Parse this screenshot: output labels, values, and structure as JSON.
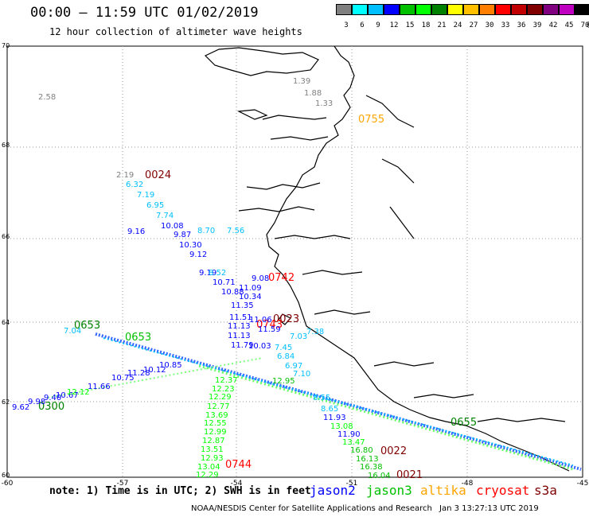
{
  "header": {
    "title": "00:00 – 11:59 UTC 01/02/2019",
    "subtitle": "12 hour collection of altimeter wave heights"
  },
  "colorbar": {
    "unit": "(ft)",
    "labels": [
      "3",
      "6",
      "9",
      "12",
      "15",
      "18",
      "21",
      "24",
      "27",
      "30",
      "33",
      "36",
      "39",
      "42",
      "45",
      "70"
    ],
    "colors": [
      "#808080",
      "#00ffff",
      "#00bfff",
      "#0000ff",
      "#00c000",
      "#00ff00",
      "#008000",
      "#ffff00",
      "#ffc000",
      "#ff8000",
      "#ff0000",
      "#c00000",
      "#800000",
      "#800080",
      "#c000c0",
      "#000000"
    ]
  },
  "axes": {
    "lat_labels": [
      "70",
      "68",
      "66",
      "64",
      "62",
      "60"
    ],
    "lon_labels": [
      "-60",
      "-57",
      "-54",
      "-51",
      "-48",
      "-45"
    ]
  },
  "times": [
    {
      "text": "0755",
      "color": "#ffa500"
    },
    {
      "text": "0024",
      "color": "#800000"
    },
    {
      "text": "0653",
      "color": "#008000"
    },
    {
      "text": "0653",
      "color": "#00c000"
    },
    {
      "text": "0742",
      "color": "#ff0000"
    },
    {
      "text": "0023",
      "color": "#800000"
    },
    {
      "text": "0743",
      "color": "#ff0000"
    },
    {
      "text": "0300",
      "color": "#008000"
    },
    {
      "text": "0744",
      "color": "#ff0000"
    },
    {
      "text": "0022",
      "color": "#800000"
    },
    {
      "text": "0021",
      "color": "#800000"
    },
    {
      "text": "0655",
      "color": "#008000"
    }
  ],
  "wave_heights": {
    "standalone": [
      {
        "text": "2.58",
        "color": "#808080"
      },
      {
        "text": "1.39",
        "color": "#808080"
      },
      {
        "text": "1.88",
        "color": "#808080"
      },
      {
        "text": "1.33",
        "color": "#808080"
      },
      {
        "text": "2.19",
        "color": "#808080"
      }
    ],
    "track_north": [
      {
        "text": "6.32",
        "color": "#00bfff"
      },
      {
        "text": "7.19",
        "color": "#00bfff"
      },
      {
        "text": "6.95",
        "color": "#00bfff"
      },
      {
        "text": "7.74",
        "color": "#00bfff"
      },
      {
        "text": "10.08",
        "color": "#0000ff"
      },
      {
        "text": "9.16",
        "color": "#0000ff"
      },
      {
        "text": "9.87",
        "color": "#0000ff"
      },
      {
        "text": "10.30",
        "color": "#0000ff"
      },
      {
        "text": "9.12",
        "color": "#0000ff"
      },
      {
        "text": "9.19",
        "color": "#0000ff"
      },
      {
        "text": "8.52",
        "color": "#00bfff"
      },
      {
        "text": "10.71",
        "color": "#0000ff"
      },
      {
        "text": "9.08",
        "color": "#0000ff"
      },
      {
        "text": "11.09",
        "color": "#0000ff"
      },
      {
        "text": "10.88",
        "color": "#0000ff"
      },
      {
        "text": "10.34",
        "color": "#0000ff"
      },
      {
        "text": "11.35",
        "color": "#0000ff"
      },
      {
        "text": "11.51",
        "color": "#0000ff"
      },
      {
        "text": "11.06",
        "color": "#0000ff"
      },
      {
        "text": "11.13",
        "color": "#0000ff"
      },
      {
        "text": "11.59",
        "color": "#0000ff"
      },
      {
        "text": "11.13",
        "color": "#0000ff"
      },
      {
        "text": "11.79",
        "color": "#0000ff"
      },
      {
        "text": "10.03",
        "color": "#0000ff"
      },
      {
        "text": "7.56",
        "color": "#00bfff"
      },
      {
        "text": "8.70",
        "color": "#00bfff"
      }
    ],
    "track_east": [
      {
        "text": "7.38",
        "color": "#00bfff"
      },
      {
        "text": "7.03",
        "color": "#00bfff"
      },
      {
        "text": "7.45",
        "color": "#00bfff"
      },
      {
        "text": "6.84",
        "color": "#00bfff"
      },
      {
        "text": "6.97",
        "color": "#00bfff"
      },
      {
        "text": "7.10",
        "color": "#00bfff"
      },
      {
        "text": "12.95",
        "color": "#00c000"
      },
      {
        "text": "8.55",
        "color": "#00bfff"
      },
      {
        "text": "8.65",
        "color": "#00bfff"
      },
      {
        "text": "11.93",
        "color": "#0000ff"
      },
      {
        "text": "13.08",
        "color": "#00ff00"
      },
      {
        "text": "11.90",
        "color": "#0000ff"
      },
      {
        "text": "13.47",
        "color": "#00ff00"
      },
      {
        "text": "16.80",
        "color": "#00c000"
      },
      {
        "text": "16.13",
        "color": "#00c000"
      },
      {
        "text": "16.38",
        "color": "#00c000"
      },
      {
        "text": "16.04",
        "color": "#00c000"
      }
    ],
    "track_west": [
      {
        "text": "7.04",
        "color": "#00bfff"
      },
      {
        "text": "10.85",
        "color": "#0000ff"
      },
      {
        "text": "10.12",
        "color": "#0000ff"
      },
      {
        "text": "11.28",
        "color": "#0000ff"
      },
      {
        "text": "10.75",
        "color": "#0000ff"
      },
      {
        "text": "11.66",
        "color": "#0000ff"
      },
      {
        "text": "10.67",
        "color": "#0000ff"
      },
      {
        "text": "9.40",
        "color": "#0000ff"
      },
      {
        "text": "9.98",
        "color": "#0000ff"
      },
      {
        "text": "9.62",
        "color": "#0000ff"
      },
      {
        "text": "12.12",
        "color": "#00ff00"
      }
    ],
    "track_south": [
      {
        "text": "12.37",
        "color": "#00ff00"
      },
      {
        "text": "12.23",
        "color": "#00ff00"
      },
      {
        "text": "12.29",
        "color": "#00ff00"
      },
      {
        "text": "12.77",
        "color": "#00ff00"
      },
      {
        "text": "13.69",
        "color": "#00ff00"
      },
      {
        "text": "12.55",
        "color": "#00ff00"
      },
      {
        "text": "12.99",
        "color": "#00ff00"
      },
      {
        "text": "12.87",
        "color": "#00ff00"
      },
      {
        "text": "13.51",
        "color": "#00ff00"
      },
      {
        "text": "12.93",
        "color": "#00ff00"
      },
      {
        "text": "13.04",
        "color": "#00ff00"
      },
      {
        "text": "12.29",
        "color": "#00ff00"
      }
    ]
  },
  "note": "note: 1) Time is in UTC; 2) SWH is in feet",
  "legend": [
    {
      "text": "jason2",
      "color": "#0000ff"
    },
    {
      "text": "jason3",
      "color": "#00c000"
    },
    {
      "text": "altika",
      "color": "#ffa500"
    },
    {
      "text": "cryosat",
      "color": "#ff0000"
    },
    {
      "text": "s3a",
      "color": "#800000"
    }
  ],
  "footer": {
    "credit": "NOAA/NESDIS Center for Satellite Applications and Research",
    "timestamp": "Jan  3 13:27:13 UTC 2019"
  }
}
